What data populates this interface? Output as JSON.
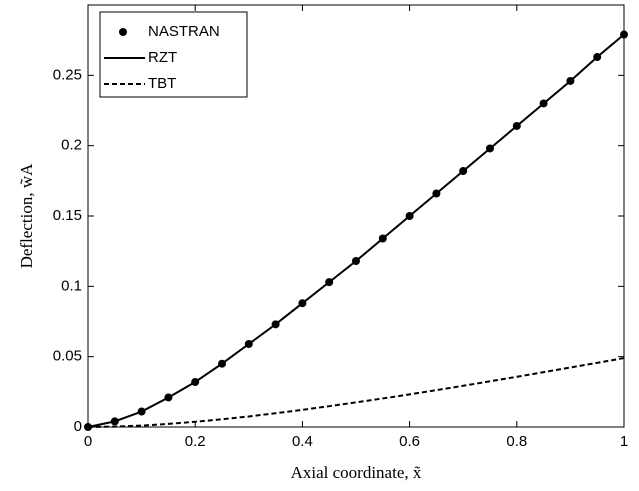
{
  "chart_data": {
    "type": "line",
    "x_label": "Axial coordinate, x̃",
    "y_label": "Deflection, w̃A",
    "x": [
      0,
      0.05,
      0.1,
      0.15,
      0.2,
      0.25,
      0.3,
      0.35,
      0.4,
      0.45,
      0.5,
      0.55,
      0.6,
      0.65,
      0.7,
      0.75,
      0.8,
      0.85,
      0.9,
      0.95,
      1
    ],
    "series": [
      {
        "name": "NASTRAN",
        "color": "#000000",
        "style": "markers",
        "values": [
          0,
          0.004,
          0.011,
          0.021,
          0.032,
          0.045,
          0.059,
          0.073,
          0.088,
          0.103,
          0.118,
          0.134,
          0.15,
          0.166,
          0.182,
          0.198,
          0.214,
          0.23,
          0.246,
          0.263,
          0.279
        ]
      },
      {
        "name": "RZT",
        "color": "#000000",
        "style": "solid",
        "values": [
          0,
          0.004,
          0.011,
          0.021,
          0.032,
          0.045,
          0.059,
          0.073,
          0.088,
          0.103,
          0.118,
          0.134,
          0.15,
          0.166,
          0.182,
          0.198,
          0.214,
          0.23,
          0.246,
          0.263,
          0.279
        ]
      },
      {
        "name": "TBT",
        "color": "#000000",
        "style": "dashed",
        "values": [
          0,
          0.0003,
          0.001,
          0.0022,
          0.0037,
          0.0055,
          0.0075,
          0.0098,
          0.0122,
          0.0148,
          0.0175,
          0.0203,
          0.0232,
          0.0262,
          0.0293,
          0.0325,
          0.0357,
          0.039,
          0.0423,
          0.0456,
          0.049
        ]
      }
    ],
    "xlim": [
      0,
      1
    ],
    "xticks": [
      0,
      0.2,
      0.4,
      0.6,
      0.8,
      1
    ],
    "ylim": [
      0,
      0.3
    ],
    "yticks": [
      0,
      0.05,
      0.1,
      0.15,
      0.2,
      0.25
    ],
    "legend": "upper-left",
    "grid": false
  }
}
